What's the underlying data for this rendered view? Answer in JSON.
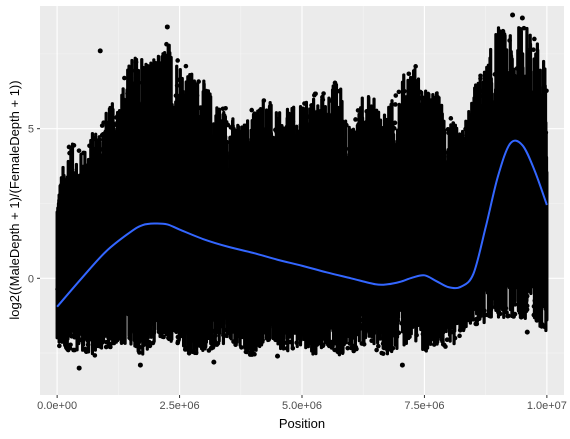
{
  "chart_data": {
    "type": "scatter",
    "xlabel": "Position",
    "ylabel": "log2((MaleDepth + 1)/(FemaleDepth + 1))",
    "xlim": [
      -350000,
      10350000
    ],
    "ylim": [
      -3.9,
      9.1
    ],
    "x_ticks": [
      {
        "value": 0,
        "label": "0.0e+00"
      },
      {
        "value": 2500000,
        "label": "2.5e+06"
      },
      {
        "value": 5000000,
        "label": "5.0e+06"
      },
      {
        "value": 7500000,
        "label": "7.5e+06"
      },
      {
        "value": 10000000,
        "label": "1.0e+07"
      }
    ],
    "y_ticks": [
      {
        "value": 0,
        "label": "0"
      },
      {
        "value": 5,
        "label": "5"
      }
    ],
    "grid": true,
    "points_color": "#000000",
    "smooth_color": "#3366FF",
    "panel_background": "#EBEBEB",
    "envelope": {
      "x": [
        0,
        250000,
        500000,
        750000,
        1000000,
        1250000,
        1500000,
        1750000,
        2000000,
        2250000,
        2500000,
        2750000,
        3000000,
        3250000,
        3500000,
        3750000,
        4000000,
        4250000,
        4500000,
        4750000,
        5000000,
        5250000,
        5500000,
        5750000,
        6000000,
        6250000,
        6500000,
        6750000,
        7000000,
        7250000,
        7500000,
        7750000,
        8000000,
        8250000,
        8500000,
        8750000,
        9000000,
        9250000,
        9500000,
        9750000,
        10000000
      ],
      "upper": [
        3.0,
        4.6,
        4.2,
        5.0,
        5.6,
        6.1,
        7.4,
        7.7,
        7.3,
        8.0,
        7.4,
        6.9,
        6.6,
        6.0,
        5.6,
        5.1,
        5.7,
        6.2,
        5.5,
        5.7,
        5.8,
        6.2,
        6.2,
        6.8,
        5.0,
        6.2,
        6.0,
        5.7,
        6.6,
        7.4,
        6.3,
        6.3,
        5.5,
        4.8,
        6.4,
        7.1,
        8.5,
        8.1,
        8.6,
        8.2,
        7.0
      ],
      "lower": [
        -2.4,
        -2.4,
        -2.4,
        -2.6,
        -2.3,
        -2.3,
        -2.2,
        -2.6,
        -2.1,
        -2.1,
        -2.2,
        -2.6,
        -2.5,
        -2.3,
        -2.1,
        -2.4,
        -2.6,
        -2.1,
        -2.3,
        -2.5,
        -2.2,
        -2.6,
        -2.2,
        -2.6,
        -2.5,
        -2.2,
        -2.4,
        -2.6,
        -2.3,
        -2.1,
        -2.5,
        -2.2,
        -2.4,
        -1.9,
        -1.6,
        -1.5,
        -1.3,
        -1.4,
        -1.3,
        -1.5,
        -1.8
      ]
    },
    "outliers": [
      {
        "x": 450000,
        "y": -3.0
      },
      {
        "x": 880000,
        "y": 7.6
      },
      {
        "x": 1700000,
        "y": -2.9
      },
      {
        "x": 2250000,
        "y": 8.4
      },
      {
        "x": 3200000,
        "y": -2.8
      },
      {
        "x": 4500000,
        "y": -2.6
      },
      {
        "x": 7050000,
        "y": -2.9
      },
      {
        "x": 9300000,
        "y": 8.8
      },
      {
        "x": 9500000,
        "y": 8.7
      },
      {
        "x": 9600000,
        "y": -1.8
      }
    ],
    "smooth": {
      "x": [
        0,
        500000,
        1000000,
        1500000,
        1750000,
        2000000,
        2250000,
        2500000,
        3000000,
        3500000,
        4000000,
        4500000,
        5000000,
        5500000,
        6000000,
        6500000,
        6750000,
        7000000,
        7250000,
        7500000,
        7750000,
        8000000,
        8250000,
        8500000,
        8750000,
        9000000,
        9250000,
        9500000,
        9750000,
        10000000
      ],
      "y": [
        -0.95,
        0.0,
        0.9,
        1.55,
        1.78,
        1.83,
        1.8,
        1.63,
        1.3,
        1.05,
        0.85,
        0.62,
        0.42,
        0.2,
        0.0,
        -0.2,
        -0.2,
        -0.12,
        0.02,
        0.1,
        -0.1,
        -0.3,
        -0.28,
        0.15,
        1.7,
        3.4,
        4.5,
        4.45,
        3.6,
        2.45
      ]
    }
  }
}
